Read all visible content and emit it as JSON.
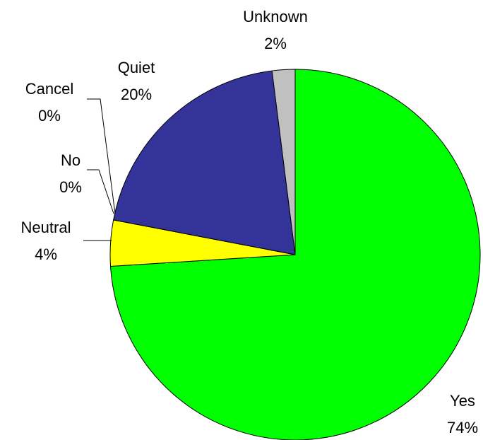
{
  "chart_data": {
    "type": "pie",
    "categories": [
      "Yes",
      "Neutral",
      "No",
      "Cancel",
      "Quiet",
      "Unknown"
    ],
    "values": [
      74,
      4,
      0,
      0,
      20,
      2
    ],
    "value_labels": [
      "74%",
      "4%",
      "0%",
      "0%",
      "20%",
      "2%"
    ],
    "colors": [
      "#00ff00",
      "#ffff00",
      "#ff0000",
      "#ff00ff",
      "#333399",
      "#c0c0c0"
    ]
  }
}
